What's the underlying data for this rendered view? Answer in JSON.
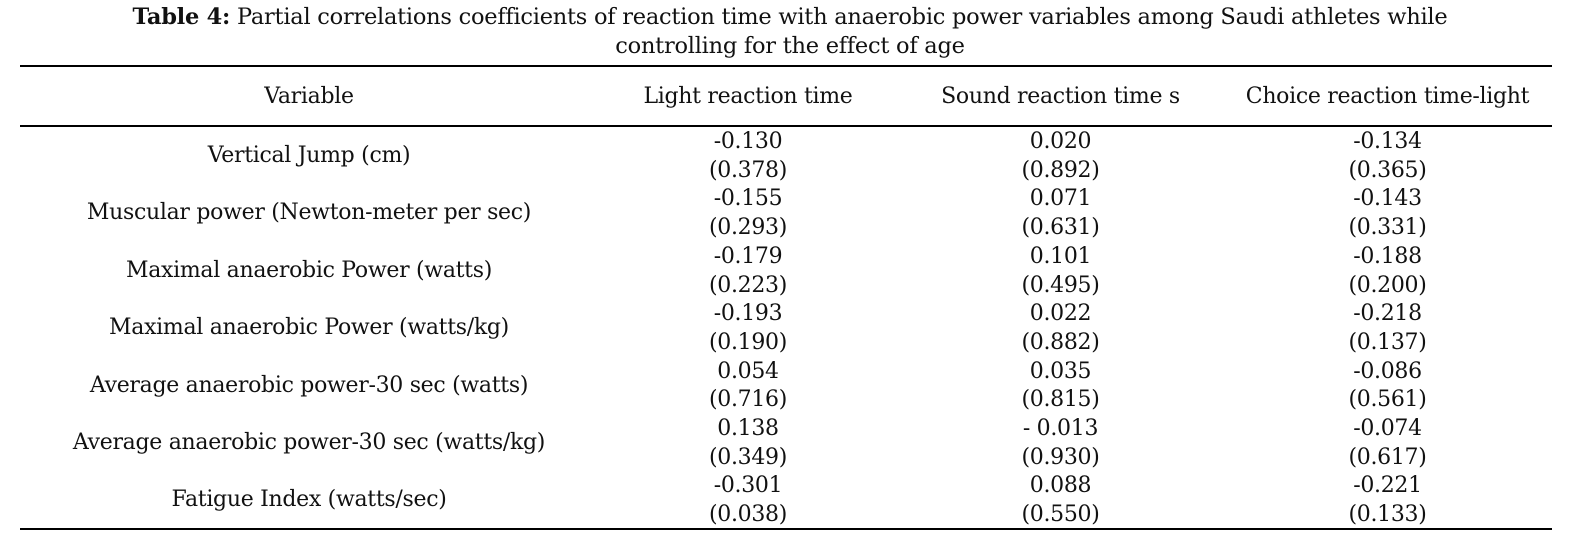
{
  "caption": {
    "label": "Table 4:",
    "line1": " Partial correlations coefficients of reaction time with anaerobic power variables among Saudi athletes while",
    "line2": "controlling for the effect of age"
  },
  "table": {
    "columns": [
      "Variable",
      "Light reaction time",
      "Sound reaction time s",
      "Choice reaction time-light"
    ],
    "rows": [
      {
        "variable": "Vertical Jump (cm)",
        "light": {
          "r": "-0.130",
          "p": "(0.378)"
        },
        "sound": {
          "r": "0.020",
          "p": "(0.892)"
        },
        "choice": {
          "r": "-0.134",
          "p": "(0.365)"
        }
      },
      {
        "variable": "Muscular power (Newton-meter per sec)",
        "light": {
          "r": "-0.155",
          "p": "(0.293)"
        },
        "sound": {
          "r": "0.071",
          "p": "(0.631)"
        },
        "choice": {
          "r": "-0.143",
          "p": "(0.331)"
        }
      },
      {
        "variable": "Maximal anaerobic Power (watts)",
        "light": {
          "r": "-0.179",
          "p": "(0.223)"
        },
        "sound": {
          "r": "0.101",
          "p": "(0.495)"
        },
        "choice": {
          "r": "-0.188",
          "p": "(0.200)"
        }
      },
      {
        "variable": "Maximal anaerobic Power (watts/kg)",
        "light": {
          "r": "-0.193",
          "p": "(0.190)"
        },
        "sound": {
          "r": "0.022",
          "p": "(0.882)"
        },
        "choice": {
          "r": "-0.218",
          "p": "(0.137)"
        }
      },
      {
        "variable": "Average anaerobic power-30 sec (watts)",
        "light": {
          "r": "0.054",
          "p": "(0.716)"
        },
        "sound": {
          "r": "0.035",
          "p": "(0.815)"
        },
        "choice": {
          "r": "-0.086",
          "p": "(0.561)"
        }
      },
      {
        "variable": "Average anaerobic power-30 sec (watts/kg)",
        "light": {
          "r": "0.138",
          "p": "(0.349)"
        },
        "sound": {
          "r": "- 0.013",
          "p": "(0.930)"
        },
        "choice": {
          "r": "-0.074",
          "p": "(0.617)"
        }
      },
      {
        "variable": "Fatigue Index (watts/sec)",
        "light": {
          "r": "-0.301",
          "p": "(0.038)"
        },
        "sound": {
          "r": "0.088",
          "p": "(0.550)"
        },
        "choice": {
          "r": "-0.221",
          "p": "(0.133)"
        }
      }
    ]
  }
}
